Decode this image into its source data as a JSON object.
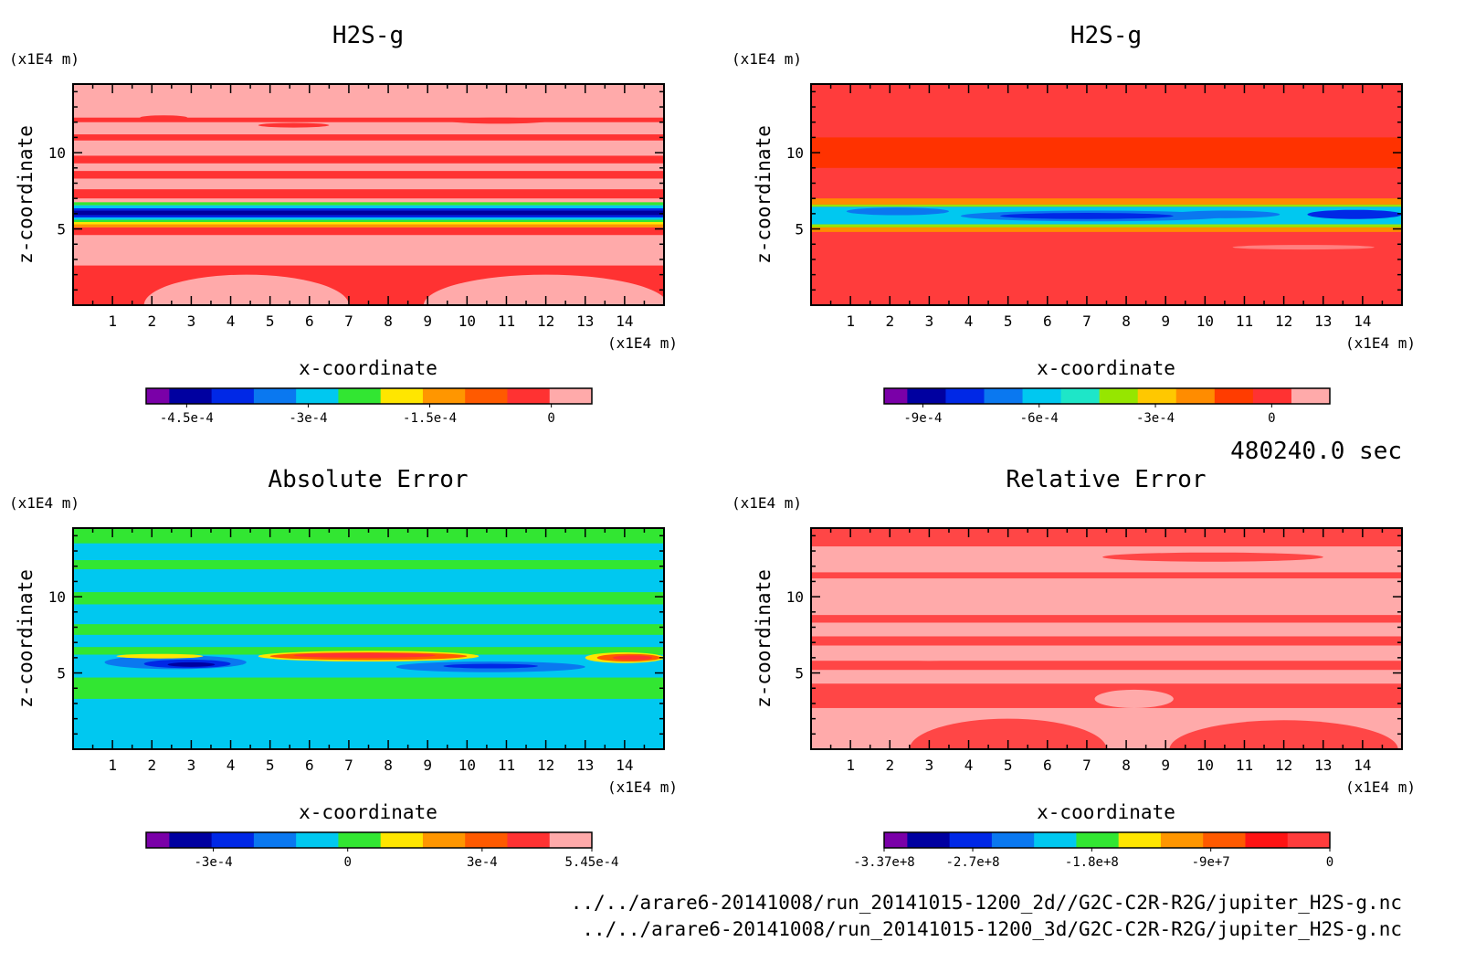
{
  "time_label": "480240.0 sec",
  "source_files": [
    "../../arare6-20141008/run_20141015-1200_2d//G2C-C2R-R2G/jupiter_H2S-g.nc",
    "../../arare6-20141008/run_20141015-1200_3d/G2C-C2R-R2G/jupiter_H2S-g.nc"
  ],
  "chart_data": [
    {
      "type": "heatmap",
      "title": "H2S-g",
      "xlabel": "x-coordinate",
      "ylabel": "z-coordinate",
      "x_unit": "(x1E4 m)",
      "y_unit": "(x1E4 m)",
      "xlim": [
        0,
        15
      ],
      "ylim": [
        0,
        14.5
      ],
      "xticks": [
        "1",
        "2",
        "3",
        "4",
        "5",
        "6",
        "7",
        "8",
        "9",
        "10",
        "11",
        "12",
        "13",
        "14"
      ],
      "yticks": [
        "5",
        "10"
      ],
      "colorbar": {
        "colors": [
          "#7a00a8",
          "#0000a0",
          "#0028e6",
          "#0a78f0",
          "#00c8f0",
          "#32e632",
          "#ffe600",
          "#ff9600",
          "#ff5a00",
          "#ff3232",
          "#ffaaaa"
        ],
        "tick_labels": [
          "-4.5e-4",
          "-3e-4",
          "-1.5e-4",
          "0"
        ],
        "tick_values": [
          -0.00045,
          -0.0003,
          -0.00015,
          0
        ],
        "range": [
          -0.0005,
          5e-05
        ]
      },
      "background_color": "#ffaaaa",
      "bands": [
        {
          "z0": 12.0,
          "z1": 12.3,
          "color": "#ff3232"
        },
        {
          "z0": 10.8,
          "z1": 11.2,
          "color": "#ff3232"
        },
        {
          "z0": 9.3,
          "z1": 9.8,
          "color": "#ff3232"
        },
        {
          "z0": 8.3,
          "z1": 8.8,
          "color": "#ff3232"
        },
        {
          "z0": 7.0,
          "z1": 7.6,
          "color": "#ff3232"
        },
        {
          "z0": 6.55,
          "z1": 6.75,
          "color": "#32e632"
        },
        {
          "z0": 6.35,
          "z1": 6.55,
          "color": "#00c8f0"
        },
        {
          "z0": 6.2,
          "z1": 6.35,
          "color": "#0028e6"
        },
        {
          "z0": 5.9,
          "z1": 6.2,
          "color": "#0000a0"
        },
        {
          "z0": 5.75,
          "z1": 5.9,
          "color": "#0028e6"
        },
        {
          "z0": 5.6,
          "z1": 5.75,
          "color": "#00c8f0"
        },
        {
          "z0": 5.45,
          "z1": 5.6,
          "color": "#32e632"
        },
        {
          "z0": 5.3,
          "z1": 5.45,
          "color": "#ffe600"
        },
        {
          "z0": 5.1,
          "z1": 5.3,
          "color": "#ff9600"
        },
        {
          "z0": 4.6,
          "z1": 5.1,
          "color": "#ff3232"
        },
        {
          "z0": 0.0,
          "z1": 2.6,
          "color": "#ff3232"
        }
      ],
      "blobs": [
        {
          "cx": 4.4,
          "cz": 0.0,
          "rx": 2.6,
          "rz": 2.0,
          "color": "#ffaaaa"
        },
        {
          "cx": 12.0,
          "cz": 0.0,
          "rx": 3.1,
          "rz": 2.0,
          "color": "#ffaaaa"
        },
        {
          "cx": 2.3,
          "cz": 12.3,
          "rx": 0.6,
          "rz": 0.15,
          "color": "#ff3232"
        },
        {
          "cx": 5.6,
          "cz": 11.8,
          "rx": 0.9,
          "rz": 0.15,
          "color": "#ff3232"
        },
        {
          "cx": 10.8,
          "cz": 12.1,
          "rx": 1.3,
          "rz": 0.2,
          "color": "#ff3232"
        }
      ]
    },
    {
      "type": "heatmap",
      "title": "H2S-g",
      "xlabel": "x-coordinate",
      "ylabel": "z-coordinate",
      "x_unit": "(x1E4 m)",
      "y_unit": "(x1E4 m)",
      "xlim": [
        0,
        15
      ],
      "ylim": [
        0,
        14.5
      ],
      "xticks": [
        "1",
        "2",
        "3",
        "4",
        "5",
        "6",
        "7",
        "8",
        "9",
        "10",
        "11",
        "12",
        "13",
        "14"
      ],
      "yticks": [
        "5",
        "10"
      ],
      "colorbar": {
        "colors": [
          "#7a00a8",
          "#0000a0",
          "#0028e6",
          "#0a78f0",
          "#00c8f0",
          "#1ee6c8",
          "#96e600",
          "#ffc800",
          "#ff8c00",
          "#ff3c00",
          "#ff3232",
          "#ffaaaa"
        ],
        "tick_labels": [
          "-9e-4",
          "-6e-4",
          "-3e-4",
          "0"
        ],
        "tick_values": [
          -0.0009,
          -0.0006,
          -0.0003,
          0
        ],
        "range": [
          -0.001,
          0.00015
        ]
      },
      "background_color": "#ff3c3c",
      "bands": [
        {
          "z0": 9.0,
          "z1": 11.0,
          "color": "#ff3200"
        },
        {
          "z0": 6.6,
          "z1": 7.0,
          "color": "#ff8c00"
        },
        {
          "z0": 6.45,
          "z1": 6.6,
          "color": "#96e600"
        },
        {
          "z0": 5.3,
          "z1": 6.45,
          "color": "#00c8f0"
        },
        {
          "z0": 5.1,
          "z1": 5.3,
          "color": "#96e600"
        },
        {
          "z0": 4.8,
          "z1": 5.1,
          "color": "#ff8c00"
        }
      ],
      "blobs": [
        {
          "cx": 2.2,
          "cz": 6.15,
          "rx": 1.3,
          "rz": 0.25,
          "color": "#0a78f0"
        },
        {
          "cx": 7.2,
          "cz": 5.85,
          "rx": 3.4,
          "rz": 0.35,
          "color": "#0a78f0"
        },
        {
          "cx": 7.0,
          "cz": 5.85,
          "rx": 2.2,
          "rz": 0.2,
          "color": "#0028e6"
        },
        {
          "cx": 13.8,
          "cz": 5.95,
          "rx": 1.2,
          "rz": 0.3,
          "color": "#0028e6"
        },
        {
          "cx": 10.5,
          "cz": 5.95,
          "rx": 1.4,
          "rz": 0.25,
          "color": "#0a78f0"
        },
        {
          "cx": 12.5,
          "cz": 3.8,
          "rx": 1.8,
          "rz": 0.15,
          "color": "#ff8080"
        }
      ]
    },
    {
      "type": "heatmap",
      "title": "Absolute Error",
      "xlabel": "x-coordinate",
      "ylabel": "z-coordinate",
      "x_unit": "(x1E4 m)",
      "y_unit": "(x1E4 m)",
      "xlim": [
        0,
        15
      ],
      "ylim": [
        0,
        14.5
      ],
      "xticks": [
        "1",
        "2",
        "3",
        "4",
        "5",
        "6",
        "7",
        "8",
        "9",
        "10",
        "11",
        "12",
        "13",
        "14"
      ],
      "yticks": [
        "5",
        "10"
      ],
      "colorbar": {
        "colors": [
          "#7a00a8",
          "#0000a0",
          "#0028e6",
          "#0a78f0",
          "#00c8f0",
          "#32e632",
          "#ffe600",
          "#ff9600",
          "#ff5a00",
          "#ff3232",
          "#ffaaaa"
        ],
        "tick_labels": [
          "-3e-4",
          "0",
          "3e-4",
          "5.45e-4"
        ],
        "tick_values": [
          -0.0003,
          0,
          0.0003,
          0.000545
        ],
        "range": [
          -0.00045,
          0.000545
        ]
      },
      "background_color": "#00c8f0",
      "bands": [
        {
          "z0": 13.5,
          "z1": 14.5,
          "color": "#32e632"
        },
        {
          "z0": 11.8,
          "z1": 12.4,
          "color": "#32e632"
        },
        {
          "z0": 9.5,
          "z1": 10.3,
          "color": "#32e632"
        },
        {
          "z0": 7.5,
          "z1": 8.2,
          "color": "#32e632"
        },
        {
          "z0": 6.2,
          "z1": 6.7,
          "color": "#32e632"
        },
        {
          "z0": 3.3,
          "z1": 4.7,
          "color": "#32e632"
        }
      ],
      "blobs": [
        {
          "cx": 2.6,
          "cz": 5.7,
          "rx": 1.8,
          "rz": 0.45,
          "color": "#0a78f0"
        },
        {
          "cx": 2.9,
          "cz": 5.6,
          "rx": 1.1,
          "rz": 0.28,
          "color": "#0028e6"
        },
        {
          "cx": 3.0,
          "cz": 5.55,
          "rx": 0.6,
          "rz": 0.15,
          "color": "#0000a0"
        },
        {
          "cx": 2.2,
          "cz": 6.1,
          "rx": 1.1,
          "rz": 0.15,
          "color": "#ffe600"
        },
        {
          "cx": 7.5,
          "cz": 6.1,
          "rx": 2.8,
          "rz": 0.35,
          "color": "#ffe600"
        },
        {
          "cx": 7.5,
          "cz": 6.1,
          "rx": 2.5,
          "rz": 0.25,
          "color": "#ff5a00"
        },
        {
          "cx": 7.4,
          "cz": 6.15,
          "rx": 1.8,
          "rz": 0.15,
          "color": "#ff3232"
        },
        {
          "cx": 10.6,
          "cz": 5.4,
          "rx": 2.4,
          "rz": 0.35,
          "color": "#0a78f0"
        },
        {
          "cx": 10.6,
          "cz": 5.45,
          "rx": 1.2,
          "rz": 0.15,
          "color": "#0028e6"
        },
        {
          "cx": 14.0,
          "cz": 6.0,
          "rx": 1.0,
          "rz": 0.35,
          "color": "#ffe600"
        },
        {
          "cx": 14.1,
          "cz": 6.0,
          "rx": 0.8,
          "rz": 0.25,
          "color": "#ff5a00"
        },
        {
          "cx": 14.2,
          "cz": 6.0,
          "rx": 0.5,
          "rz": 0.15,
          "color": "#ff3232"
        }
      ]
    },
    {
      "type": "heatmap",
      "title": "Relative Error",
      "xlabel": "x-coordinate",
      "ylabel": "z-coordinate",
      "x_unit": "(x1E4 m)",
      "y_unit": "(x1E4 m)",
      "xlim": [
        0,
        15
      ],
      "ylim": [
        0,
        14.5
      ],
      "xticks": [
        "1",
        "2",
        "3",
        "4",
        "5",
        "6",
        "7",
        "8",
        "9",
        "10",
        "11",
        "12",
        "13",
        "14"
      ],
      "yticks": [
        "5",
        "10"
      ],
      "colorbar": {
        "colors": [
          "#7a00a8",
          "#0000a0",
          "#0028e6",
          "#0a78f0",
          "#00c8f0",
          "#32e632",
          "#ffe600",
          "#ff9600",
          "#ff5a00",
          "#ff1414",
          "#ff3c3c"
        ],
        "tick_labels": [
          "-3.37e+8",
          "-2.7e+8",
          "-1.8e+8",
          "-9e+7",
          "0"
        ],
        "tick_values": [
          -337000000,
          -270000000,
          -180000000,
          -90000000,
          0
        ],
        "range": [
          -337000000,
          0
        ]
      },
      "background_color": "#ffaaaa",
      "bands": [
        {
          "z0": 13.3,
          "z1": 14.5,
          "color": "#ff4646"
        },
        {
          "z0": 11.2,
          "z1": 11.6,
          "color": "#ff4646"
        },
        {
          "z0": 8.3,
          "z1": 8.8,
          "color": "#ff4646"
        },
        {
          "z0": 6.8,
          "z1": 7.4,
          "color": "#ff4646"
        },
        {
          "z0": 5.2,
          "z1": 5.8,
          "color": "#ff4646"
        },
        {
          "z0": 2.7,
          "z1": 4.3,
          "color": "#ff4646"
        }
      ],
      "blobs": [
        {
          "cx": 5.0,
          "cz": 0.0,
          "rx": 2.5,
          "rz": 2.0,
          "color": "#ff4646"
        },
        {
          "cx": 12.0,
          "cz": 0.0,
          "rx": 2.9,
          "rz": 1.9,
          "color": "#ff4646"
        },
        {
          "cx": 8.2,
          "cz": 3.3,
          "rx": 1.0,
          "rz": 0.6,
          "color": "#ffaaaa"
        },
        {
          "cx": 3.0,
          "cz": 6.1,
          "rx": 1.0,
          "rz": 0.3,
          "color": "#ffaaaa"
        },
        {
          "cx": 10.2,
          "cz": 12.6,
          "rx": 2.8,
          "rz": 0.3,
          "color": "#ff4646"
        }
      ]
    }
  ]
}
